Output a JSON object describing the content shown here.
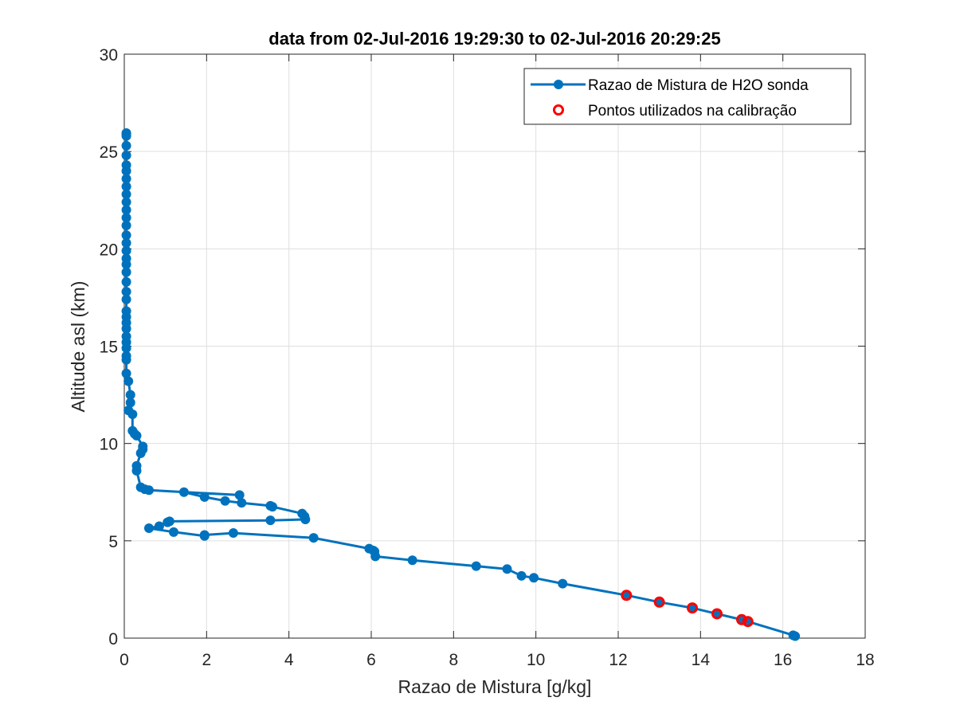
{
  "chart_data": {
    "type": "line",
    "title": "data from 02-Jul-2016 19:29:30 to 02-Jul-2016 20:29:25",
    "xlabel": "Razao de Mistura [g/kg]",
    "ylabel": "Altitude asl (km)",
    "xlim": [
      0,
      18
    ],
    "ylim": [
      0,
      30
    ],
    "xticks": [
      0,
      2,
      4,
      6,
      8,
      10,
      12,
      14,
      16,
      18
    ],
    "yticks": [
      0,
      5,
      10,
      15,
      20,
      25,
      30
    ],
    "grid": true,
    "legend_position": "top-right",
    "series": [
      {
        "name": "Razao de Mistura de H2O sonda",
        "color": "#0072BD",
        "marker": "filled-circle",
        "x": [
          16.3,
          16.25,
          15.15,
          15.0,
          14.4,
          13.8,
          13.0,
          12.2,
          10.65,
          9.95,
          9.65,
          9.3,
          8.55,
          7.0,
          6.1,
          6.05,
          6.08,
          5.95,
          4.6,
          2.65,
          1.95,
          1.95,
          1.2,
          0.6,
          0.85,
          1.05,
          1.1,
          3.55,
          4.4,
          4.38,
          4.32,
          3.6,
          3.55,
          2.85,
          2.45,
          1.95,
          1.45,
          2.8,
          0.6,
          0.5,
          0.4,
          0.3,
          0.3,
          0.4,
          0.45,
          0.45,
          0.3,
          0.25,
          0.2,
          0.2,
          0.1,
          0.15,
          0.15,
          0.1,
          0.05,
          0.05,
          0.05,
          0.05,
          0.05,
          0.05,
          0.05,
          0.05,
          0.05,
          0.05,
          0.05,
          0.05,
          0.05,
          0.05,
          0.05,
          0.05,
          0.05,
          0.05,
          0.05,
          0.05,
          0.05,
          0.05,
          0.05,
          0.05,
          0.05,
          0.05,
          0.05,
          0.05,
          0.05,
          0.05,
          0.05,
          0.05,
          0.05
        ],
        "y": [
          0.1,
          0.15,
          0.85,
          0.95,
          1.25,
          1.55,
          1.85,
          2.2,
          2.8,
          3.1,
          3.2,
          3.55,
          3.7,
          4.0,
          4.2,
          4.5,
          4.45,
          4.6,
          5.15,
          5.4,
          5.3,
          5.25,
          5.45,
          5.65,
          5.75,
          5.95,
          6.0,
          6.05,
          6.1,
          6.25,
          6.4,
          6.75,
          6.8,
          6.95,
          7.05,
          7.25,
          7.5,
          7.35,
          7.6,
          7.65,
          7.75,
          8.6,
          8.85,
          9.5,
          9.7,
          9.85,
          10.4,
          10.5,
          10.65,
          11.5,
          11.7,
          12.1,
          12.5,
          13.2,
          13.6,
          14.3,
          14.5,
          14.9,
          15.2,
          15.5,
          15.9,
          16.2,
          16.5,
          16.8,
          17.4,
          17.8,
          18.3,
          18.8,
          19.2,
          19.5,
          19.9,
          20.3,
          20.7,
          21.2,
          21.6,
          22.0,
          22.4,
          22.8,
          23.2,
          23.6,
          24.0,
          24.3,
          24.8,
          25.3,
          25.8,
          25.95,
          25.9
        ]
      },
      {
        "name": "Pontos utilizados na calibração",
        "color": "#FF0000",
        "marker": "open-circle",
        "x": [
          12.2,
          13.0,
          13.8,
          14.4,
          15.0,
          15.15
        ],
        "y": [
          2.2,
          1.85,
          1.55,
          1.25,
          0.95,
          0.85
        ]
      }
    ]
  }
}
